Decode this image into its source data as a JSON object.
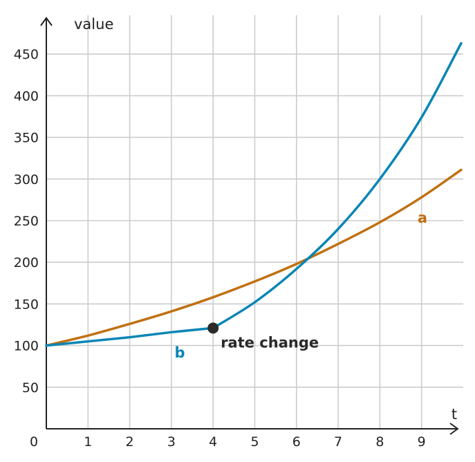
{
  "chart_data": {
    "type": "line",
    "xlabel": "t",
    "ylabel": "value",
    "xlim": [
      0,
      9.95
    ],
    "ylim": [
      0,
      470
    ],
    "x_ticks": [
      1,
      2,
      3,
      4,
      5,
      6,
      7,
      8,
      9
    ],
    "y_ticks": [
      50,
      100,
      150,
      200,
      250,
      300,
      350,
      400,
      450
    ],
    "origin_label": "0",
    "grid": true,
    "series": [
      {
        "name": "a",
        "color": "#c07010",
        "x": [
          0,
          1,
          2,
          3,
          4,
          5,
          6,
          7,
          8,
          9,
          9.95
        ],
        "y": [
          100,
          112,
          126,
          141,
          158,
          177,
          198,
          222,
          248,
          278,
          311
        ]
      },
      {
        "name": "b",
        "color": "#0a86b5",
        "x": [
          0,
          1,
          2,
          3,
          4,
          5,
          6,
          7,
          8,
          9,
          9.95
        ],
        "y": [
          100,
          105,
          110,
          116,
          121,
          152,
          192,
          240,
          300,
          374,
          463
        ]
      }
    ],
    "annotations": [
      {
        "text": "rate change",
        "x": 4,
        "y": 121,
        "marker_color": "#2a2a2a"
      }
    ]
  }
}
